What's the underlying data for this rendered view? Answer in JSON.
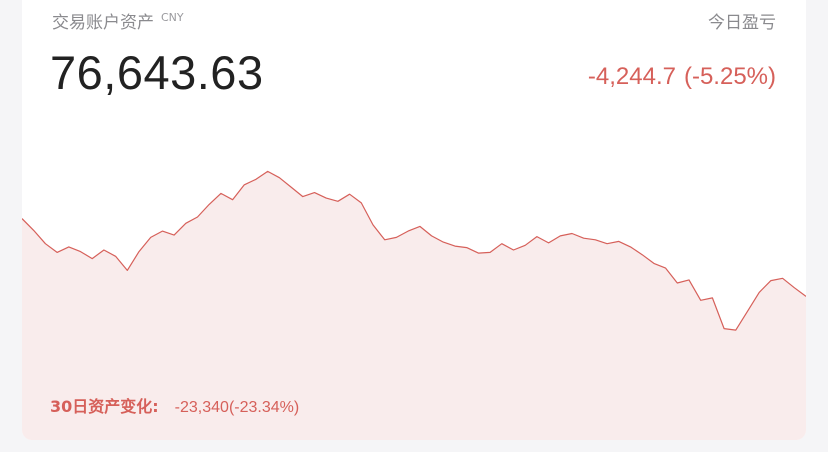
{
  "account": {
    "title": "交易账户资产",
    "currency": "CNY",
    "balance": "76,643.63"
  },
  "daily_pnl": {
    "label": "今日盈亏",
    "amount": "-4,244.7",
    "percent": "(-5.25%)"
  },
  "period_change": {
    "label": "30日资产变化:",
    "value": "-23,340(-23.34%)"
  },
  "colors": {
    "line": "#d6605a",
    "fill": "#f9ecec",
    "text_negative": "#d6605a"
  },
  "chart_data": {
    "type": "line",
    "series": [
      {
        "values": [
          66000,
          64500,
          62800,
          61700,
          62400,
          61800,
          60900,
          62000,
          61200,
          59400,
          61800,
          63600,
          64400,
          63900,
          65400,
          66200,
          67800,
          69200,
          68400,
          70300,
          71000,
          72000,
          71200,
          70000,
          68800,
          69300,
          68600,
          68200,
          69100,
          68000,
          65200,
          63300,
          63600,
          64400,
          65000,
          63800,
          63000,
          62500,
          62300,
          61600,
          61700,
          62800,
          62000,
          62600,
          63700,
          62900,
          63800,
          64100,
          63500,
          63300,
          62800,
          63100,
          62400,
          61400,
          60300,
          59700,
          57800,
          58200,
          55600,
          55900,
          52000,
          51800,
          54200,
          56600,
          58100,
          58400,
          57200,
          56100
        ]
      }
    ],
    "ylim": [
      48000,
      76000
    ],
    "grid": false,
    "legend": "none"
  }
}
